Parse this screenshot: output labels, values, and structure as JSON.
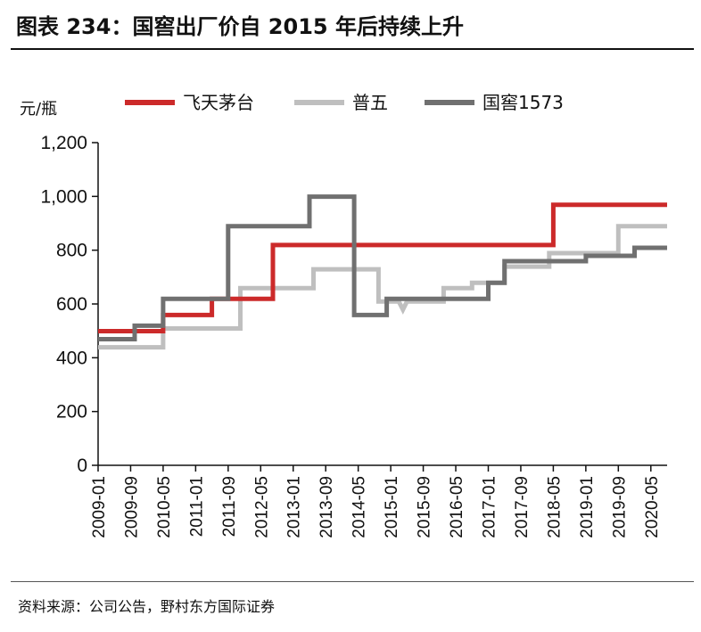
{
  "figure": {
    "title": "图表 234：国窖出厂价自 2015 年后持续上升",
    "source": "资料来源：公司公告，野村东方国际证券"
  },
  "chart_data": {
    "type": "line",
    "step": true,
    "ylabel": "元/瓶",
    "xlabel": "",
    "ylim": [
      0,
      1200
    ],
    "yticks": [
      0,
      200,
      400,
      600,
      800,
      1000,
      1200
    ],
    "ytick_labels": [
      "0",
      "200",
      "400",
      "600",
      "800",
      "1,000",
      "1,200"
    ],
    "x_start": "2009-01",
    "x_end": "2020-09",
    "xtick_labels": [
      "2009-01",
      "2009-09",
      "2010-05",
      "2011-01",
      "2011-09",
      "2012-05",
      "2013-01",
      "2013-09",
      "2014-05",
      "2015-01",
      "2015-09",
      "2016-05",
      "2017-01",
      "2017-09",
      "2018-05",
      "2019-01",
      "2019-09",
      "2020-05"
    ],
    "grid": false,
    "legend_position": "top",
    "series": [
      {
        "name": "飞天茅台",
        "color": "#cc2a2a",
        "points": [
          [
            "2009-01",
            499
          ],
          [
            "2010-05",
            499
          ],
          [
            "2010-05",
            559
          ],
          [
            "2011-05",
            559
          ],
          [
            "2011-05",
            619
          ],
          [
            "2012-08",
            619
          ],
          [
            "2012-08",
            819
          ],
          [
            "2018-05",
            819
          ],
          [
            "2018-05",
            969
          ],
          [
            "2020-09",
            969
          ]
        ]
      },
      {
        "name": "普五",
        "color": "#bfbfbf",
        "points": [
          [
            "2009-01",
            439
          ],
          [
            "2010-05",
            439
          ],
          [
            "2010-05",
            509
          ],
          [
            "2011-12",
            509
          ],
          [
            "2011-12",
            659
          ],
          [
            "2013-06",
            659
          ],
          [
            "2013-06",
            729
          ],
          [
            "2014-10",
            729
          ],
          [
            "2014-10",
            609
          ],
          [
            "2015-03",
            609
          ],
          [
            "2015-04",
            579
          ],
          [
            "2015-05",
            609
          ],
          [
            "2016-02",
            609
          ],
          [
            "2016-02",
            659
          ],
          [
            "2016-09",
            659
          ],
          [
            "2016-09",
            679
          ],
          [
            "2017-05",
            679
          ],
          [
            "2017-05",
            739
          ],
          [
            "2018-04",
            739
          ],
          [
            "2018-04",
            789
          ],
          [
            "2019-01",
            789
          ],
          [
            "2019-01",
            789
          ],
          [
            "2019-09",
            789
          ],
          [
            "2019-09",
            889
          ],
          [
            "2020-09",
            889
          ]
        ]
      },
      {
        "name": "国窖1573",
        "color": "#707070",
        "points": [
          [
            "2009-01",
            469
          ],
          [
            "2009-10",
            469
          ],
          [
            "2009-10",
            519
          ],
          [
            "2010-05",
            519
          ],
          [
            "2010-05",
            619
          ],
          [
            "2011-09",
            619
          ],
          [
            "2011-09",
            889
          ],
          [
            "2013-05",
            889
          ],
          [
            "2013-05",
            999
          ],
          [
            "2014-04",
            999
          ],
          [
            "2014-04",
            559
          ],
          [
            "2014-12",
            559
          ],
          [
            "2014-12",
            619
          ],
          [
            "2017-01",
            619
          ],
          [
            "2017-01",
            679
          ],
          [
            "2017-05",
            679
          ],
          [
            "2017-05",
            759
          ],
          [
            "2019-01",
            759
          ],
          [
            "2019-01",
            779
          ],
          [
            "2020-01",
            779
          ],
          [
            "2020-01",
            809
          ],
          [
            "2020-09",
            809
          ]
        ]
      }
    ]
  }
}
